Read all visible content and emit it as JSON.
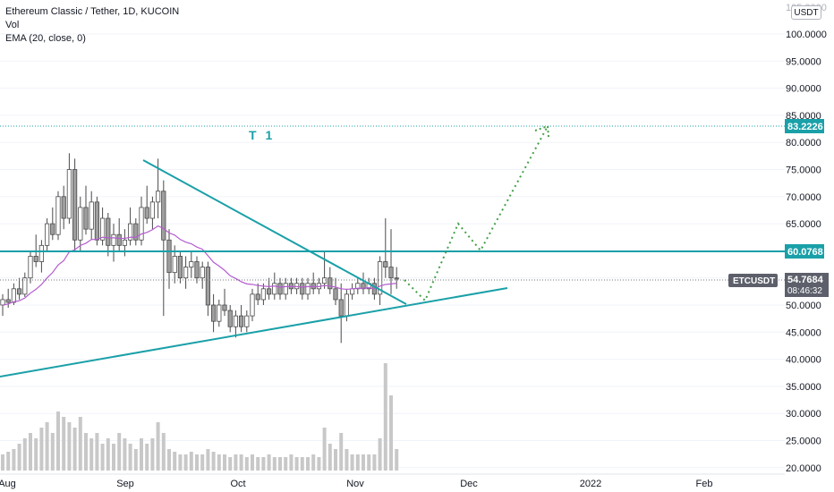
{
  "legend": {
    "symbol_line": "Ethereum Classic / Tether, 1D, KUCOIN",
    "vol_label": "Vol",
    "ema_label": "EMA (20, close, 0)"
  },
  "currency_button": "USDT",
  "annotation": "T 1",
  "price_scale": {
    "ticks": [
      "100.0000",
      "95.0000",
      "90.0000",
      "85.0000",
      "80.0000",
      "75.0000",
      "70.0000",
      "65.0000",
      "60.0000",
      "55.0000",
      "50.0000",
      "45.0000",
      "40.0000",
      "35.0000",
      "30.0000",
      "25.0000",
      "20.0000"
    ],
    "partial_top_tick": "105.0000"
  },
  "time_scale": {
    "labels": [
      "Aug",
      "Sep",
      "Oct",
      "Nov",
      "Dec",
      "2022",
      "Feb"
    ]
  },
  "price_labels": {
    "target": "83.2226",
    "level": "60.0768",
    "ticker": "ETCUSDT",
    "last_price": "54.7684",
    "countdown": "08:46:32"
  },
  "colors": {
    "teal": "#1aa0a8",
    "candle": "#9e9e9e",
    "ema": "#b45ccf",
    "projection": "#43a047",
    "ticker_bg": "#5d606b",
    "volume": "#c8c8c8"
  },
  "chart_data": {
    "type": "candlestick",
    "title": "Ethereum Classic / Tether, 1D, KUCOIN",
    "ylim": [
      20,
      105
    ],
    "x_labels": [
      "Aug",
      "Sep",
      "Oct",
      "Nov",
      "Dec",
      "2022",
      "Feb"
    ],
    "levels": {
      "target": 83.2226,
      "horizontal_level": 60.0768,
      "last_price": 54.7684
    },
    "ema_period": 20,
    "candles": [
      {
        "o": 50,
        "h": 52,
        "l": 48,
        "c": 51
      },
      {
        "o": 51,
        "h": 53,
        "l": 49.5,
        "c": 50.5
      },
      {
        "o": 50.5,
        "h": 54,
        "l": 50,
        "c": 53
      },
      {
        "o": 53,
        "h": 55,
        "l": 51,
        "c": 52
      },
      {
        "o": 52,
        "h": 56,
        "l": 51.5,
        "c": 55
      },
      {
        "o": 55,
        "h": 60,
        "l": 54,
        "c": 59
      },
      {
        "o": 59,
        "h": 63,
        "l": 57,
        "c": 58
      },
      {
        "o": 58,
        "h": 62,
        "l": 56,
        "c": 61
      },
      {
        "o": 61,
        "h": 66,
        "l": 60,
        "c": 65
      },
      {
        "o": 65,
        "h": 68,
        "l": 62,
        "c": 63
      },
      {
        "o": 63,
        "h": 71,
        "l": 62,
        "c": 70
      },
      {
        "o": 70,
        "h": 72,
        "l": 64,
        "c": 66
      },
      {
        "o": 66,
        "h": 78,
        "l": 65,
        "c": 75
      },
      {
        "o": 75,
        "h": 77,
        "l": 60,
        "c": 62
      },
      {
        "o": 62,
        "h": 70,
        "l": 60,
        "c": 68
      },
      {
        "o": 68,
        "h": 72,
        "l": 63,
        "c": 64
      },
      {
        "o": 64,
        "h": 71,
        "l": 62,
        "c": 69
      },
      {
        "o": 69,
        "h": 70,
        "l": 61,
        "c": 62
      },
      {
        "o": 62,
        "h": 68,
        "l": 61,
        "c": 66
      },
      {
        "o": 66,
        "h": 67,
        "l": 59,
        "c": 61
      },
      {
        "o": 61,
        "h": 65,
        "l": 58,
        "c": 63
      },
      {
        "o": 63,
        "h": 66,
        "l": 60,
        "c": 61
      },
      {
        "o": 61,
        "h": 64,
        "l": 59,
        "c": 62
      },
      {
        "o": 62,
        "h": 68,
        "l": 61,
        "c": 65
      },
      {
        "o": 65,
        "h": 66,
        "l": 61,
        "c": 62
      },
      {
        "o": 62,
        "h": 70,
        "l": 61,
        "c": 68
      },
      {
        "o": 68,
        "h": 72,
        "l": 65,
        "c": 66
      },
      {
        "o": 66,
        "h": 70,
        "l": 64,
        "c": 69
      },
      {
        "o": 69,
        "h": 77,
        "l": 66,
        "c": 71
      },
      {
        "o": 71,
        "h": 73,
        "l": 48,
        "c": 62
      },
      {
        "o": 62,
        "h": 64,
        "l": 53,
        "c": 56
      },
      {
        "o": 56,
        "h": 61,
        "l": 54,
        "c": 59
      },
      {
        "o": 59,
        "h": 60,
        "l": 54,
        "c": 55
      },
      {
        "o": 55,
        "h": 59,
        "l": 53,
        "c": 57
      },
      {
        "o": 57,
        "h": 60,
        "l": 55,
        "c": 58
      },
      {
        "o": 58,
        "h": 59,
        "l": 54,
        "c": 55
      },
      {
        "o": 55,
        "h": 58,
        "l": 53,
        "c": 57
      },
      {
        "o": 57,
        "h": 58,
        "l": 48,
        "c": 50
      },
      {
        "o": 50,
        "h": 52,
        "l": 45,
        "c": 47
      },
      {
        "o": 47,
        "h": 51,
        "l": 46,
        "c": 50
      },
      {
        "o": 50,
        "h": 53,
        "l": 48,
        "c": 49
      },
      {
        "o": 49,
        "h": 50,
        "l": 45,
        "c": 46
      },
      {
        "o": 46,
        "h": 49,
        "l": 44,
        "c": 48
      },
      {
        "o": 48,
        "h": 50,
        "l": 45,
        "c": 46
      },
      {
        "o": 46,
        "h": 49,
        "l": 45,
        "c": 48
      },
      {
        "o": 48,
        "h": 53,
        "l": 47,
        "c": 52
      },
      {
        "o": 52,
        "h": 54,
        "l": 50,
        "c": 51
      },
      {
        "o": 51,
        "h": 54,
        "l": 50,
        "c": 53
      },
      {
        "o": 53,
        "h": 55,
        "l": 51,
        "c": 52
      },
      {
        "o": 52,
        "h": 56,
        "l": 51,
        "c": 54
      },
      {
        "o": 54,
        "h": 55,
        "l": 51,
        "c": 52
      },
      {
        "o": 52,
        "h": 55,
        "l": 51,
        "c": 54
      },
      {
        "o": 54,
        "h": 55,
        "l": 52,
        "c": 53
      },
      {
        "o": 53,
        "h": 55,
        "l": 52,
        "c": 54
      },
      {
        "o": 54,
        "h": 55,
        "l": 51,
        "c": 52
      },
      {
        "o": 52,
        "h": 55,
        "l": 51,
        "c": 54
      },
      {
        "o": 54,
        "h": 56,
        "l": 52,
        "c": 53
      },
      {
        "o": 53,
        "h": 55,
        "l": 52,
        "c": 54
      },
      {
        "o": 54,
        "h": 60,
        "l": 53,
        "c": 55
      },
      {
        "o": 55,
        "h": 57,
        "l": 52,
        "c": 53
      },
      {
        "o": 53,
        "h": 55,
        "l": 50,
        "c": 51
      },
      {
        "o": 51,
        "h": 54,
        "l": 43,
        "c": 48
      },
      {
        "o": 48,
        "h": 53,
        "l": 47,
        "c": 52
      },
      {
        "o": 52,
        "h": 54,
        "l": 51,
        "c": 53
      },
      {
        "o": 53,
        "h": 55,
        "l": 52,
        "c": 54
      },
      {
        "o": 54,
        "h": 56,
        "l": 52,
        "c": 53
      },
      {
        "o": 53,
        "h": 55,
        "l": 52,
        "c": 54
      },
      {
        "o": 54,
        "h": 55,
        "l": 51,
        "c": 52
      },
      {
        "o": 52,
        "h": 59,
        "l": 50,
        "c": 58
      },
      {
        "o": 58,
        "h": 66,
        "l": 55,
        "c": 57
      },
      {
        "o": 57,
        "h": 64,
        "l": 52,
        "c": 55
      },
      {
        "o": 55,
        "h": 57,
        "l": 53,
        "c": 54.8
      }
    ],
    "ema": [
      50,
      50.2,
      50.6,
      50.8,
      51.3,
      52.2,
      52.9,
      53.8,
      55,
      56,
      57.4,
      58.2,
      59.8,
      60.2,
      61,
      61.4,
      62.1,
      62.1,
      62.5,
      62.4,
      62.4,
      62.3,
      62.3,
      62.5,
      62.5,
      63.1,
      63.4,
      63.9,
      64.6,
      64.1,
      63.3,
      62.9,
      62.1,
      61.6,
      61.3,
      60.7,
      60.3,
      59.1,
      57.9,
      57.2,
      56.4,
      55.4,
      54.9,
      54.3,
      53.9,
      53.8,
      53.6,
      53.5,
      53.4,
      53.5,
      53.3,
      53.4,
      53.4,
      53.4,
      53.3,
      53.4,
      53.4,
      53.4,
      53.6,
      53.5,
      53.3,
      53,
      52.9,
      53,
      53.1,
      53.1,
      53.2,
      53,
      53.5,
      53.8,
      53.9,
      54
    ],
    "volume": [
      3,
      3.5,
      4,
      5,
      6,
      7,
      6,
      8,
      9,
      7,
      11,
      10,
      9,
      8,
      10,
      7,
      6,
      7,
      5,
      6,
      5,
      7,
      6,
      5,
      4,
      6,
      5,
      6,
      9,
      7,
      4,
      3.5,
      3,
      3,
      3.5,
      3,
      3,
      4,
      3.5,
      3,
      3,
      2.5,
      3,
      3,
      2.5,
      3,
      2.5,
      2.5,
      3,
      2.5,
      2.5,
      2.5,
      3,
      2.5,
      2.5,
      2.5,
      3,
      2.5,
      8,
      5,
      4,
      7,
      4,
      3,
      3,
      3,
      3,
      3,
      6,
      20,
      14,
      4
    ]
  }
}
